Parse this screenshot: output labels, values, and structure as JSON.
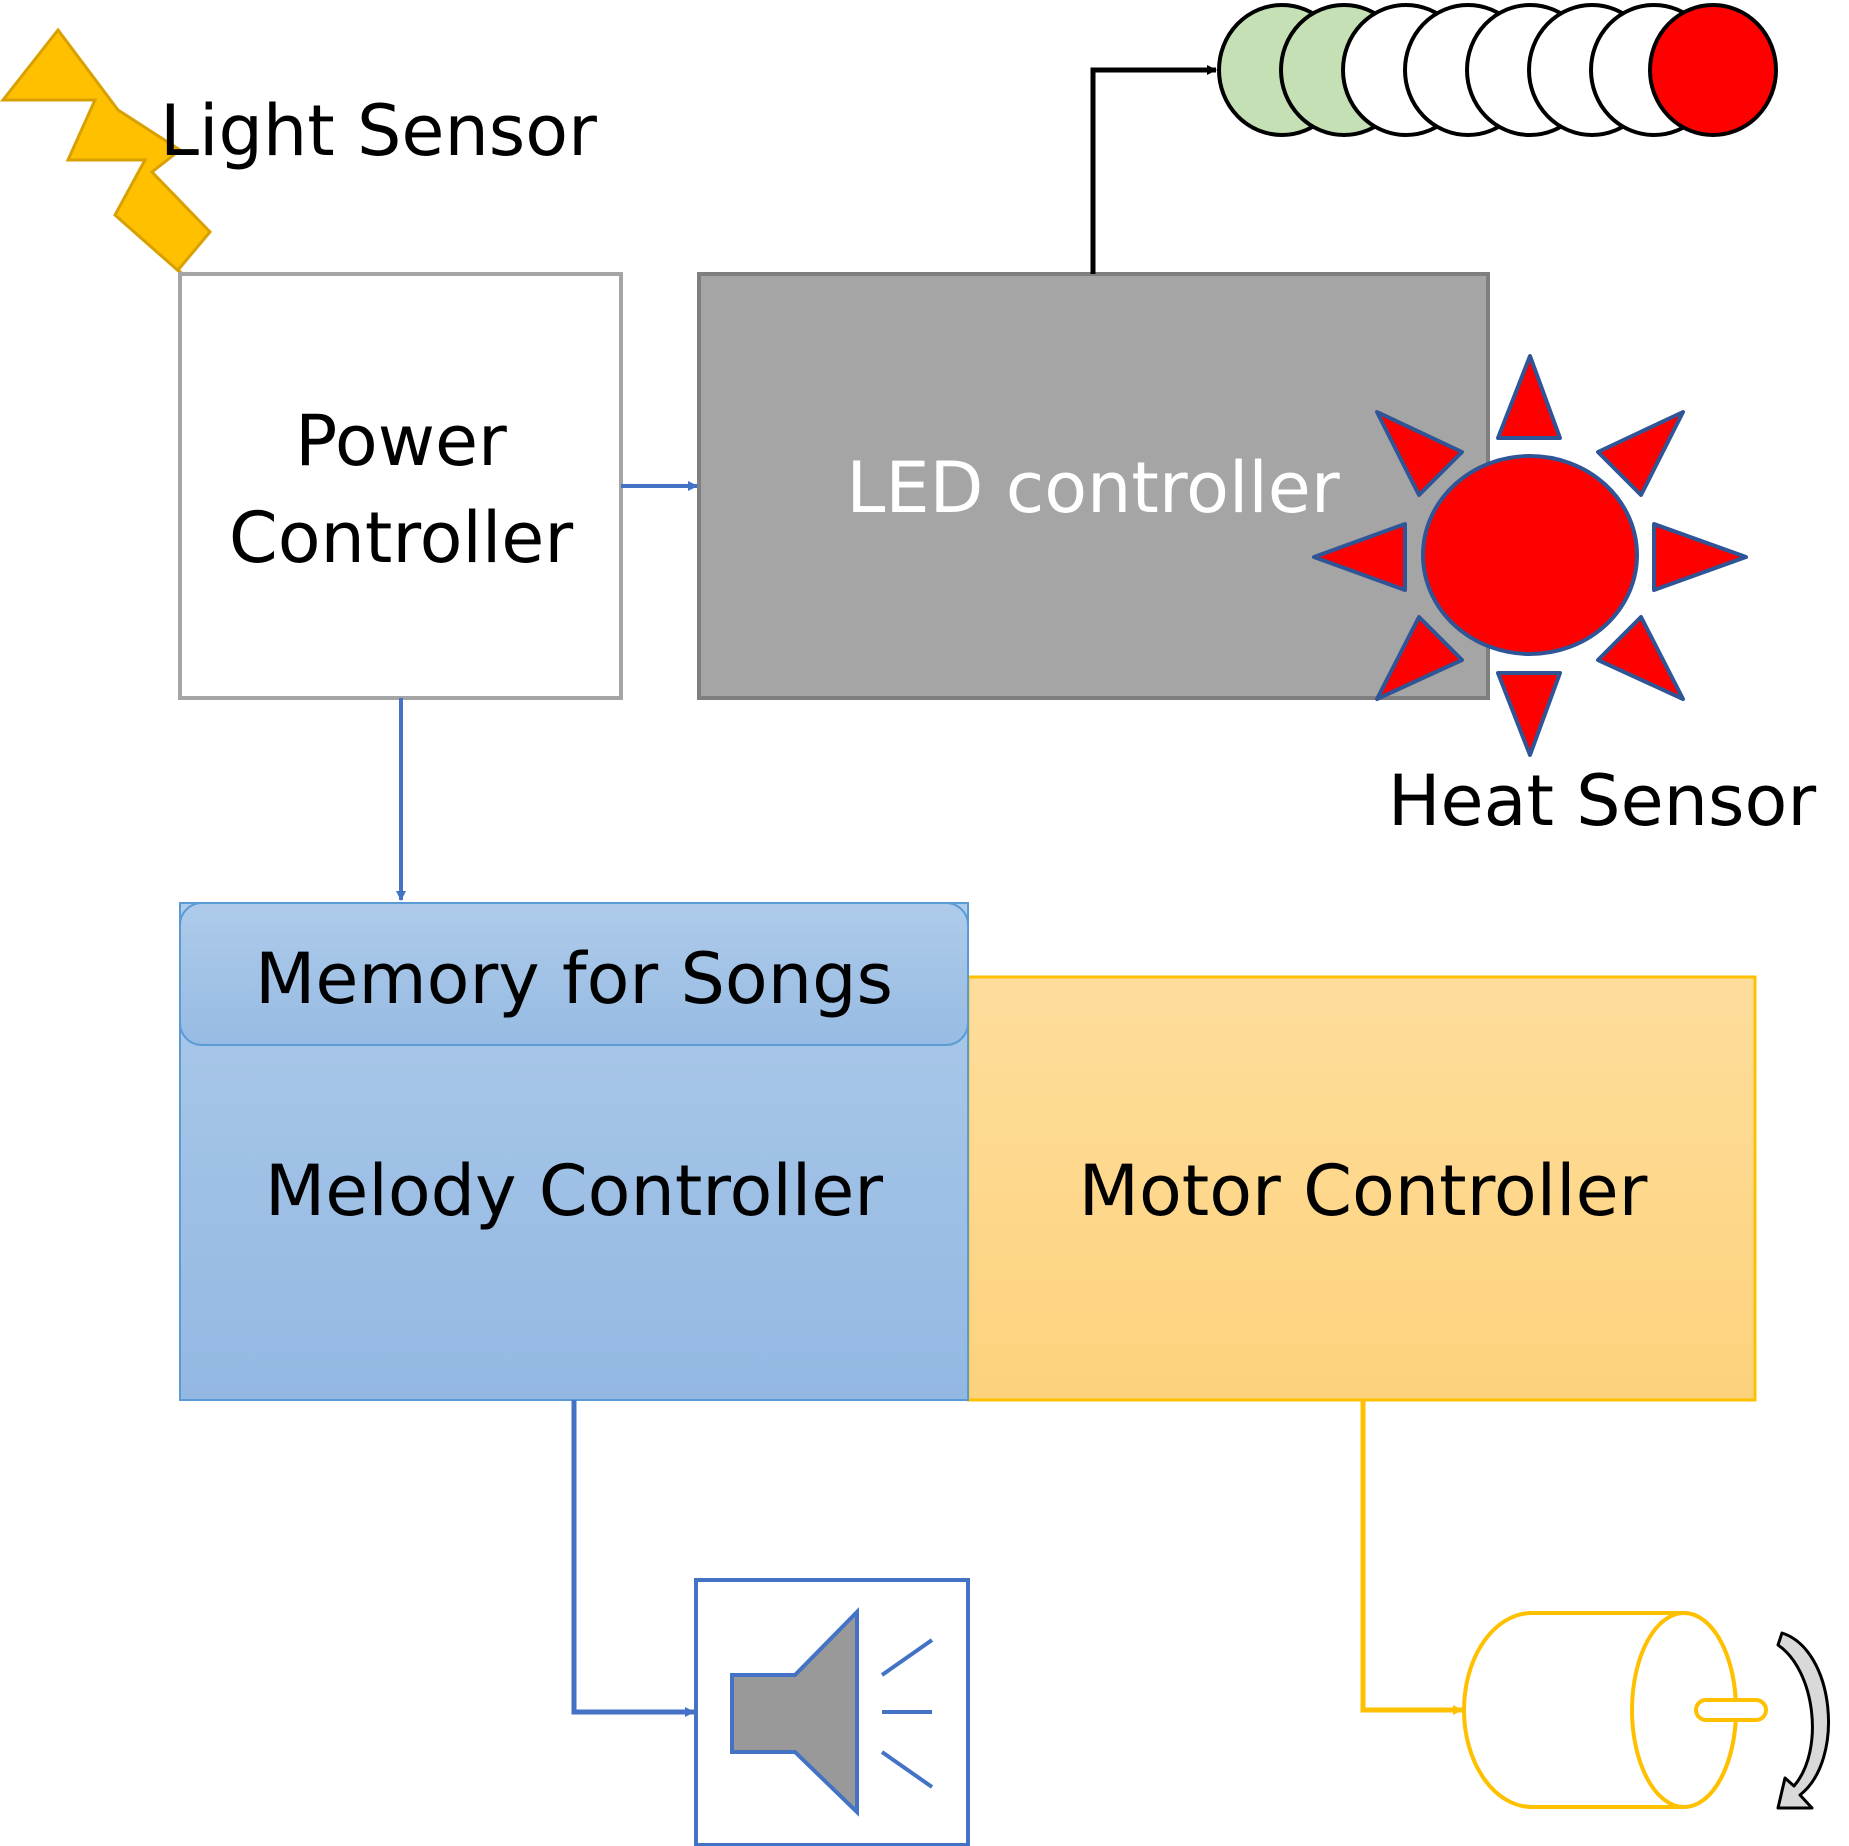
{
  "labels": {
    "light_sensor": "Light Sensor",
    "heat_sensor": "Heat Sensor"
  },
  "blocks": {
    "power_controller": {
      "line1": "Power",
      "line2": "Controller"
    },
    "led_controller": "LED controller",
    "memory": "Memory for Songs",
    "melody_controller": "Melody Controller",
    "motor_controller": "Motor Controller"
  },
  "led_strip": {
    "count": 8,
    "colors": [
      "#c5e0b4",
      "#c5e0b4",
      "#ffffff",
      "#ffffff",
      "#ffffff",
      "#ffffff",
      "#ffffff",
      "#ff0000"
    ]
  },
  "colors": {
    "blue_arrow": "#4472c4",
    "yellow_arrow": "#ffc000",
    "black_arrow": "#000000",
    "led_box": "#a5a5a5",
    "melody_box": "#9dc3e6",
    "motor_box": "#fed17f",
    "sun": "#ff0000",
    "lightning": "#ffc000"
  }
}
